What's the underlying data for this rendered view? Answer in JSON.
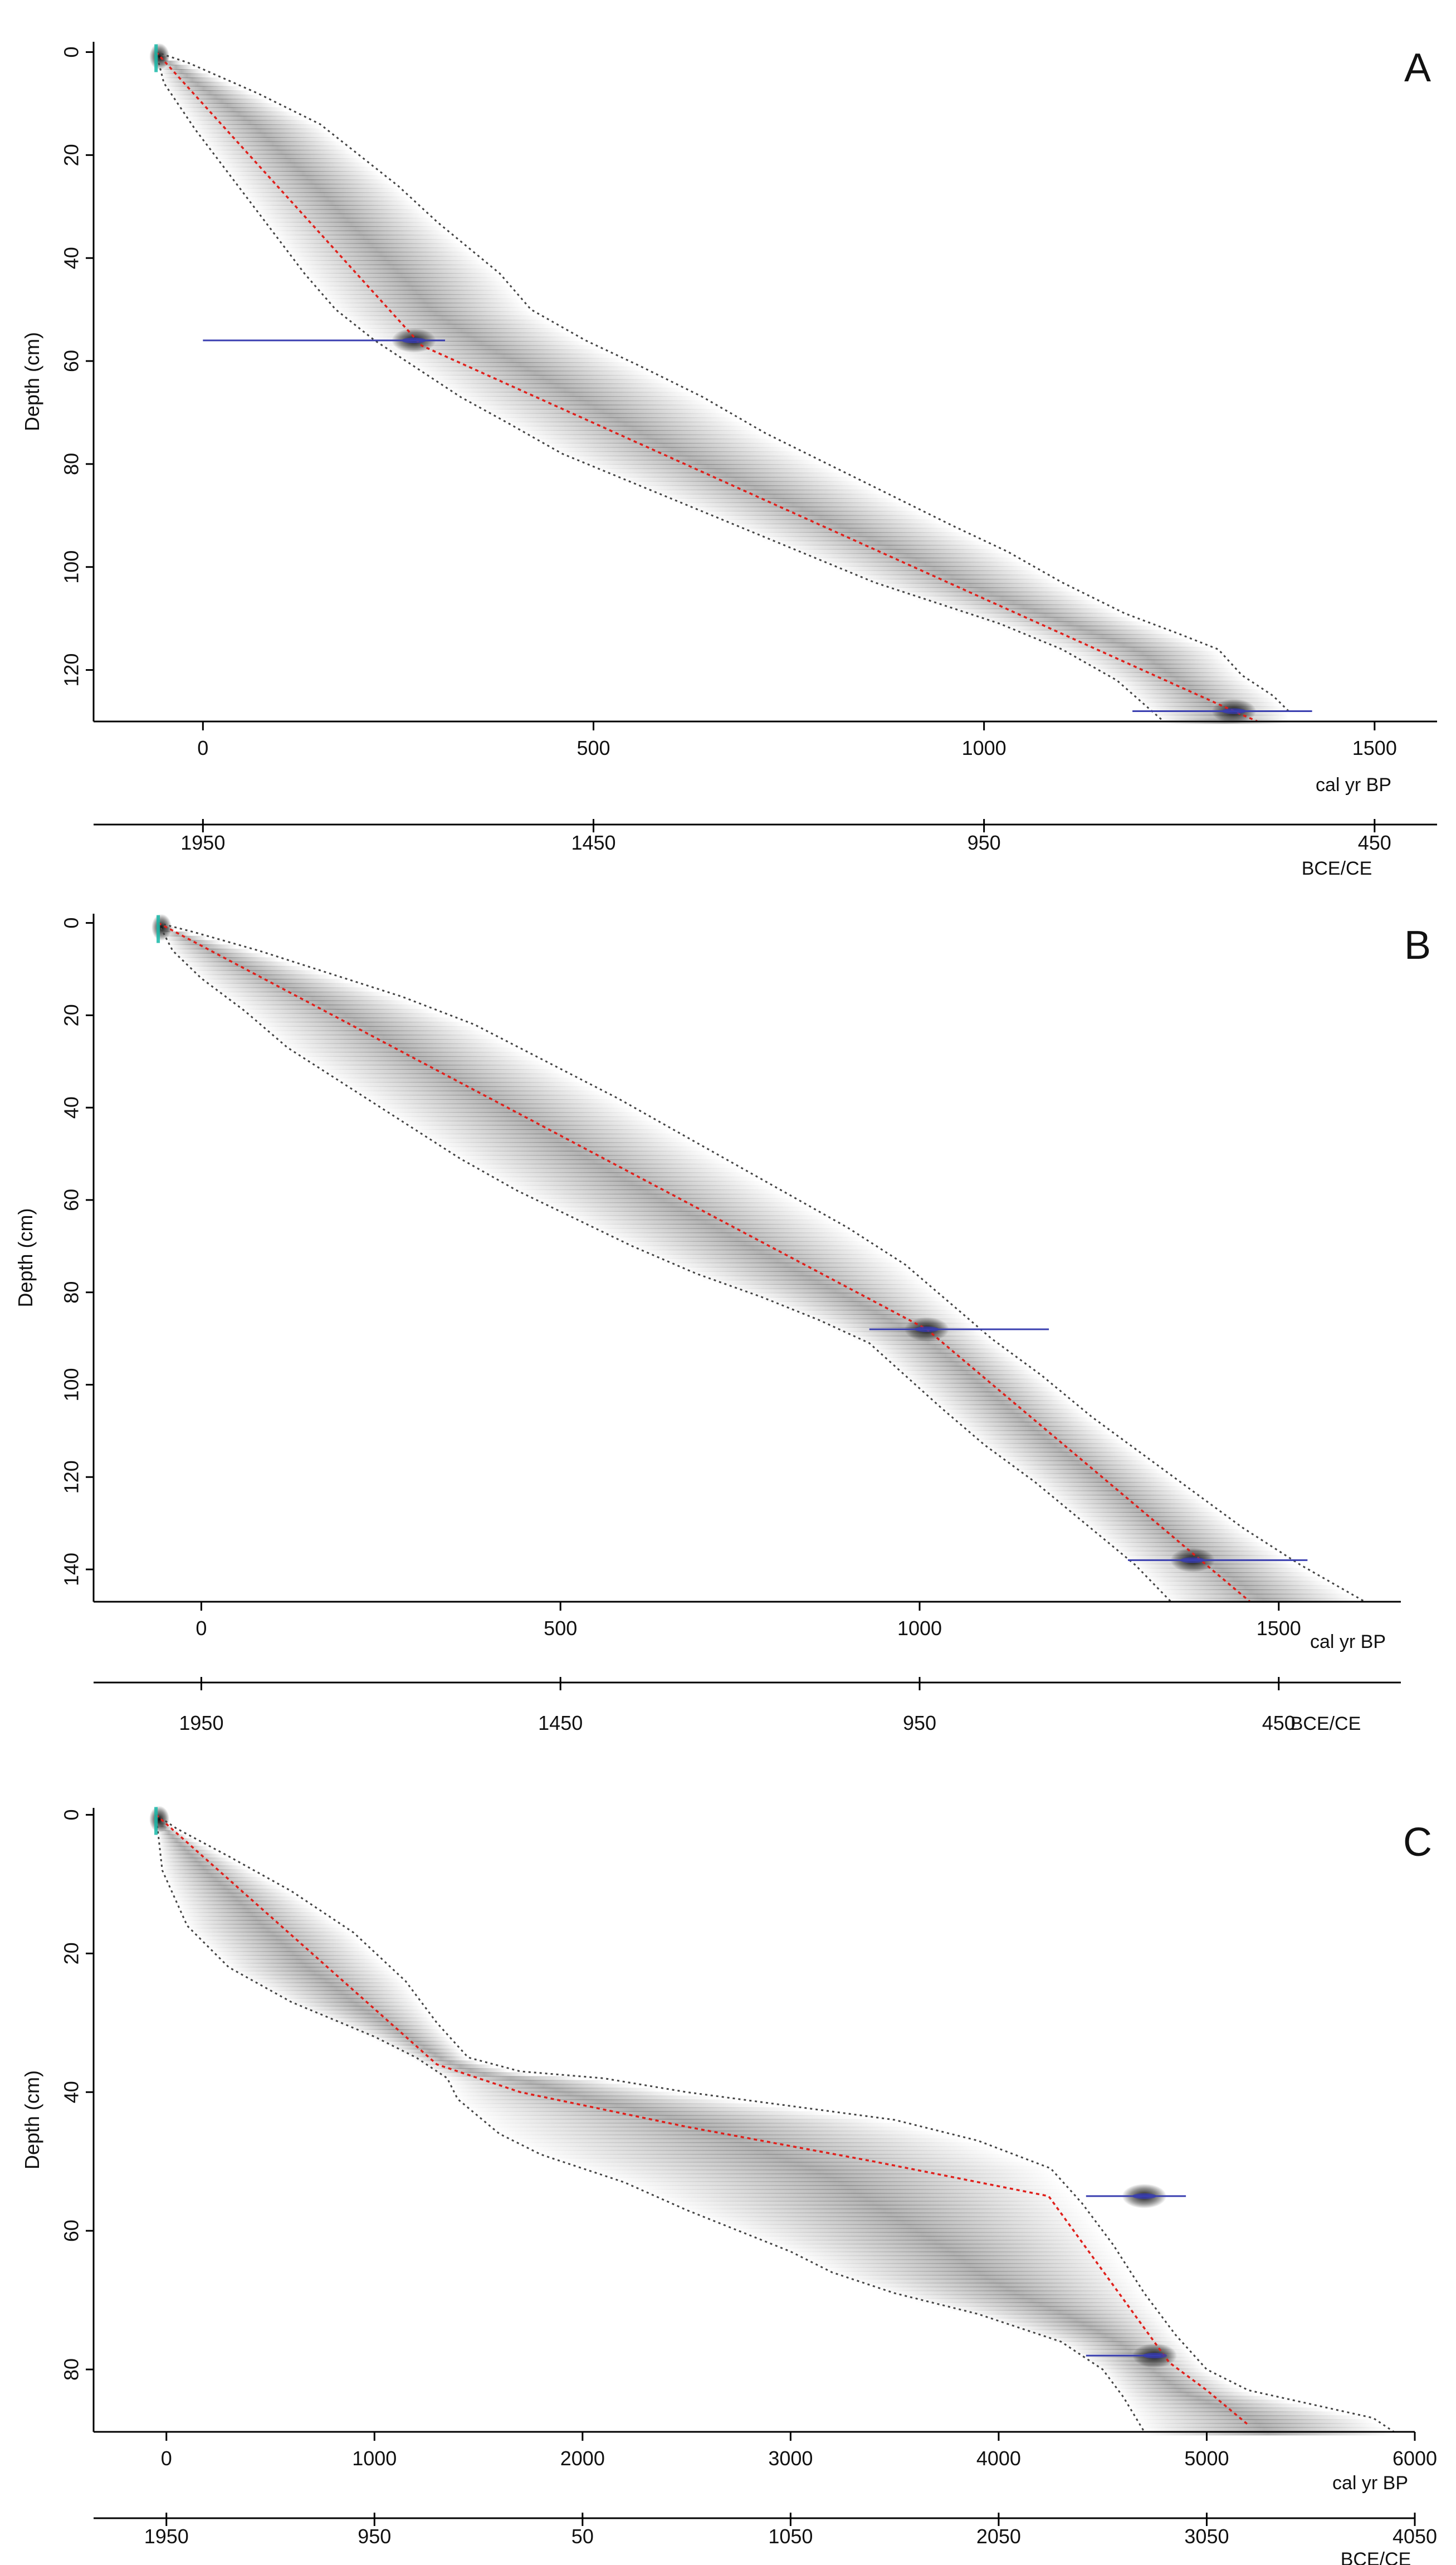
{
  "colors": {
    "accent": "#e0201b",
    "envelope": "#444444",
    "date": "#3a3fb0",
    "surface": "#18b8a8",
    "axis": "#000000"
  },
  "chart_data": [
    {
      "type": "line",
      "panel_label": "A",
      "ylabel": "Depth (cm)",
      "xlabel": "cal yr BP",
      "x2label": "BCE/CE",
      "xlim": [
        -140,
        1580
      ],
      "ylim": [
        130,
        -2
      ],
      "x_ticks": [
        0,
        500,
        1000,
        1500
      ],
      "x_tick_labels": [
        "0",
        "500",
        "1000",
        "1500"
      ],
      "y_ticks": [
        0,
        20,
        40,
        60,
        80,
        100,
        120
      ],
      "y_tick_labels": [
        "0",
        "20",
        "40",
        "60",
        "80",
        "100",
        "120"
      ],
      "x2_ticks": [
        0,
        500,
        1000,
        1500
      ],
      "x2_tick_labels": [
        "1950",
        "1450",
        "950",
        "450"
      ],
      "series": [
        {
          "name": "median",
          "x": [
            -60,
            280,
            1320,
            1350
          ],
          "y": [
            0,
            57,
            128,
            130
          ]
        },
        {
          "name": "upper",
          "x": [
            -60,
            -20,
            70,
            150,
            200,
            250,
            300,
            380,
            420,
            490,
            560,
            640,
            720,
            800,
            880,
            960,
            1030,
            1100,
            1180,
            1250,
            1300,
            1330,
            1370,
            1390
          ],
          "y": [
            0,
            2,
            8,
            14,
            20,
            26,
            33,
            43,
            50,
            56,
            61,
            67,
            74,
            80,
            86,
            92,
            97,
            103,
            109,
            113,
            116,
            121,
            125,
            128
          ]
        },
        {
          "name": "lower",
          "x": [
            -60,
            -50,
            -10,
            40,
            80,
            130,
            170,
            220,
            270,
            330,
            390,
            460,
            540,
            620,
            700,
            780,
            860,
            940,
            1020,
            1100,
            1170,
            1200,
            1230
          ],
          "y": [
            0,
            6,
            15,
            25,
            33,
            43,
            50,
            56,
            61,
            67,
            72,
            78,
            83,
            88,
            93,
            98,
            103,
            107,
            111,
            116,
            122,
            126,
            130
          ]
        }
      ],
      "dates": [
        {
          "depth": 56,
          "x_min": 0,
          "x_max": 310,
          "center": 270
        },
        {
          "depth": 128,
          "x_min": 1190,
          "x_max": 1420,
          "center": 1320
        }
      ]
    },
    {
      "type": "line",
      "panel_label": "B",
      "ylabel": "Depth (cm)",
      "xlabel": "cal yr BP",
      "x2label": "BCE/CE",
      "xlim": [
        -150,
        1670
      ],
      "ylim": [
        147,
        -2
      ],
      "x_ticks": [
        0,
        500,
        1000,
        1500
      ],
      "x_tick_labels": [
        "0",
        "500",
        "1000",
        "1500"
      ],
      "y_ticks": [
        0,
        20,
        40,
        60,
        80,
        100,
        120,
        140
      ],
      "y_tick_labels": [
        "0",
        "20",
        "40",
        "60",
        "80",
        "100",
        "120",
        "140"
      ],
      "x2_ticks": [
        0,
        500,
        1000,
        1500
      ],
      "x2_tick_labels": [
        "1950",
        "1450",
        "950",
        "450"
      ],
      "series": [
        {
          "name": "median",
          "x": [
            -60,
            1010,
            1460
          ],
          "y": [
            0,
            88,
            147
          ]
        },
        {
          "name": "upper",
          "x": [
            -60,
            -10,
            80,
            180,
            280,
            380,
            480,
            580,
            660,
            740,
            820,
            900,
            980,
            1040,
            1100,
            1170,
            1240,
            1310,
            1380,
            1450,
            1530,
            1620
          ],
          "y": [
            0,
            2,
            6,
            11,
            16,
            22,
            30,
            38,
            45,
            52,
            59,
            66,
            74,
            82,
            90,
            98,
            107,
            115,
            123,
            131,
            139,
            147
          ]
        },
        {
          "name": "lower",
          "x": [
            -60,
            -40,
            0,
            60,
            120,
            200,
            280,
            360,
            440,
            520,
            600,
            690,
            780,
            860,
            930,
            980,
            1030,
            1090,
            1160,
            1230,
            1300,
            1350
          ],
          "y": [
            0,
            6,
            12,
            19,
            27,
            35,
            43,
            51,
            58,
            64,
            70,
            76,
            81,
            86,
            91,
            98,
            105,
            113,
            121,
            130,
            139,
            147
          ]
        }
      ],
      "dates": [
        {
          "depth": 88,
          "x_min": 930,
          "x_max": 1180,
          "center": 1010
        },
        {
          "depth": 138,
          "x_min": 1290,
          "x_max": 1540,
          "center": 1380
        }
      ]
    },
    {
      "type": "line",
      "panel_label": "C",
      "ylabel": "Depth (cm)",
      "xlabel": "cal yr BP",
      "x2label": "BCE/CE",
      "xlim": [
        -350,
        6000
      ],
      "ylim": [
        89,
        -1
      ],
      "x_ticks": [
        0,
        1000,
        2000,
        3000,
        4000,
        5000,
        6000
      ],
      "x_tick_labels": [
        "0",
        "1000",
        "2000",
        "3000",
        "4000",
        "5000",
        "6000"
      ],
      "y_ticks": [
        0,
        20,
        40,
        60,
        80
      ],
      "y_tick_labels": [
        "0",
        "20",
        "40",
        "60",
        "80"
      ],
      "x2_ticks": [
        0,
        1000,
        2000,
        3000,
        4000,
        5000,
        6000
      ],
      "x2_tick_labels": [
        "1950",
        "950",
        "50",
        "1050",
        "2050",
        "3050",
        "4050"
      ],
      "series": [
        {
          "name": "median",
          "x": [
            -50,
            1300,
            1700,
            2500,
            3400,
            4240,
            4820,
            5000,
            5200
          ],
          "y": [
            0,
            36,
            40,
            45,
            50,
            55,
            79,
            83,
            88
          ]
        },
        {
          "name": "upper",
          "x": [
            -50,
            50,
            300,
            600,
            900,
            1150,
            1300,
            1450,
            1700,
            2100,
            2500,
            3000,
            3500,
            3900,
            4250,
            4400,
            4550,
            4700,
            4850,
            5000,
            5200,
            5500,
            5800,
            5900
          ],
          "y": [
            0,
            2,
            6,
            11,
            17,
            24,
            30,
            35,
            37,
            38,
            40,
            42,
            44,
            47,
            51,
            56,
            62,
            69,
            75,
            80,
            83,
            85,
            87,
            89
          ]
        },
        {
          "name": "lower",
          "x": [
            -50,
            -20,
            100,
            300,
            600,
            1000,
            1200,
            1350,
            1400,
            1600,
            1800,
            2000,
            2200,
            2500,
            3000,
            3200,
            3500,
            3900,
            4300,
            4500,
            4600,
            4700
          ],
          "y": [
            0,
            8,
            16,
            22,
            27,
            32,
            35,
            38,
            41,
            46,
            49,
            51,
            53,
            57,
            63,
            66,
            69,
            72,
            76,
            80,
            84,
            89
          ]
        }
      ],
      "dates": [
        {
          "depth": 55,
          "x_min": 4420,
          "x_max": 4900,
          "center": 4700
        },
        {
          "depth": 78,
          "x_min": 4420,
          "x_max": 4780,
          "center": 4750
        }
      ]
    }
  ]
}
